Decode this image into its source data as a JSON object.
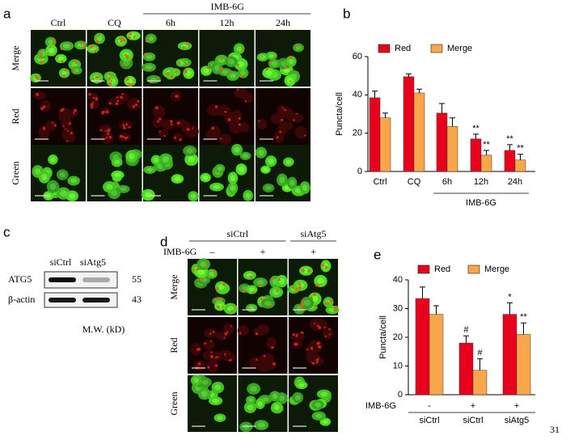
{
  "chart_data": [
    {
      "type": "bar",
      "panel": "b",
      "ylabel": "Puncta/cell",
      "categories": [
        "Ctrl",
        "CQ",
        "6h",
        "12h",
        "24h"
      ],
      "group_label": "IMB-6G",
      "ylim": [
        0,
        60
      ],
      "yticks": [
        0,
        20,
        40,
        60
      ],
      "series": [
        {
          "name": "Red",
          "color": "#e8001c",
          "values": [
            38.5,
            49.5,
            30.5,
            17,
            11
          ],
          "errors": [
            3.5,
            1.5,
            5,
            2.5,
            3
          ],
          "annotations": [
            null,
            null,
            null,
            "**",
            "**"
          ]
        },
        {
          "name": "Merge",
          "color": "#f9a64a",
          "values": [
            28,
            41,
            23.5,
            8.5,
            6
          ],
          "errors": [
            2.5,
            2,
            4.5,
            2.5,
            3
          ],
          "annotations": [
            null,
            null,
            null,
            "**",
            "**"
          ]
        }
      ]
    },
    {
      "type": "bar",
      "panel": "e",
      "ylabel": "Puncta/cell",
      "categories": [
        "siCtrl",
        "siCtrl",
        "siAtg5"
      ],
      "treatment_label": "IMB-6G",
      "treatment": [
        "-",
        "+",
        "+"
      ],
      "ylim": [
        0,
        40
      ],
      "yticks": [
        0,
        10,
        20,
        30,
        40
      ],
      "series": [
        {
          "name": "Red",
          "color": "#e8001c",
          "values": [
            33.5,
            18,
            28
          ],
          "errors": [
            4,
            2.5,
            4
          ],
          "annotations": [
            null,
            "#",
            "*"
          ]
        },
        {
          "name": "Merge",
          "color": "#f9a64a",
          "values": [
            28,
            8.5,
            21
          ],
          "errors": [
            3,
            4,
            4
          ],
          "annotations": [
            null,
            "#",
            "**"
          ]
        }
      ]
    }
  ],
  "panel_a": {
    "label": "a",
    "group_label": "IMB-6G",
    "columns": [
      "Ctrl",
      "CQ",
      "6h",
      "12h",
      "24h"
    ],
    "rows": [
      "Merge",
      "Red",
      "Green"
    ]
  },
  "panel_c": {
    "label": "c",
    "columns": [
      "siCtrl",
      "siAtg5"
    ],
    "bands": [
      {
        "name": "ATG5",
        "mw": "55"
      },
      {
        "name": "β-actin",
        "mw": "43"
      }
    ],
    "mw_label": "M.W. (kD)"
  },
  "panel_d": {
    "label": "d",
    "groups": [
      "siCtrl",
      "siAtg5"
    ],
    "treatment_label": "IMB-6G",
    "treatment": [
      "–",
      "+",
      "+"
    ],
    "rows": [
      "Merge",
      "Red",
      "Green"
    ]
  },
  "page_number": "31"
}
